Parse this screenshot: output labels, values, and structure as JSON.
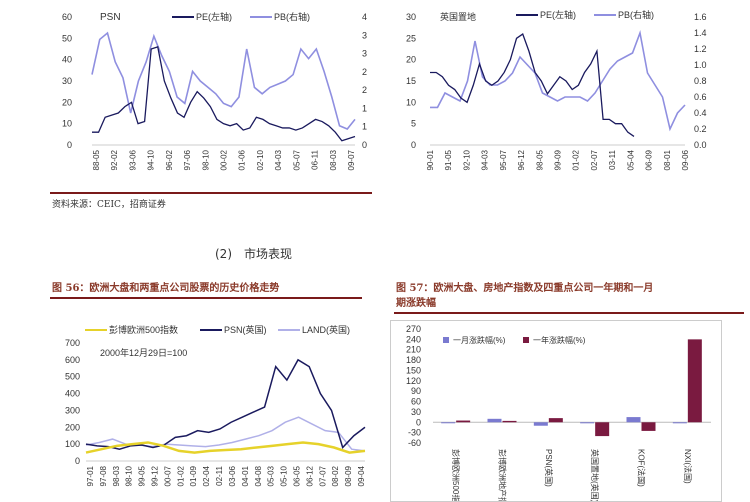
{
  "section_heading": "(2)　市场表现",
  "source_note": "资料来源：CEIC，招商证券",
  "fig56_caption": "图 56：欧洲大盘和两重点公司股票的历史价格走势",
  "fig57_caption_line1": "图 57：欧洲大盘、房地产指数及四重点公司一年期和一月",
  "fig57_caption_line2": "期涨跌幅",
  "colors": {
    "pe": "#1a1a5e",
    "pb": "#8f8fe0",
    "euro500": "#e6d22a",
    "land": "#b0b0e8",
    "month": "#7a7ad0",
    "year": "#7a1a40",
    "rule": "#7a1a1a"
  },
  "chart_data": [
    {
      "type": "line",
      "title": "PSN",
      "legend_placement": "top",
      "ylim_left": [
        0,
        60
      ],
      "ylim_right": [
        0,
        4
      ],
      "left_ticks": [
        "0",
        "10",
        "20",
        "30",
        "40",
        "50",
        "60"
      ],
      "right_ticks": [
        "0",
        "1",
        "1",
        "2",
        "2",
        "3",
        "3",
        "4"
      ],
      "x_ticks": [
        "88-05",
        "92-02",
        "93-06",
        "94-10",
        "96-02",
        "97-06",
        "98-10",
        "00-02",
        "01-06",
        "02-10",
        "04-03",
        "05-07",
        "06-11",
        "08-03",
        "09-07"
      ],
      "series": [
        {
          "name": "PE(左轴)",
          "axis": "left",
          "values": [
            6,
            6,
            13,
            14,
            15,
            18,
            20,
            10,
            11,
            45,
            46,
            30,
            22,
            15,
            13,
            20,
            25,
            22,
            18,
            12,
            10,
            9,
            10,
            7,
            8,
            13,
            12,
            10,
            9,
            8,
            8,
            7,
            8,
            10,
            12,
            11,
            9,
            6,
            2,
            3,
            4
          ]
        },
        {
          "name": "PB(右轴)",
          "axis": "right",
          "values": [
            2.2,
            3.3,
            3.5,
            2.6,
            2.1,
            1.0,
            2.0,
            2.6,
            3.4,
            2.8,
            2.3,
            1.5,
            1.3,
            2.3,
            2.0,
            1.8,
            1.6,
            1.3,
            1.2,
            1.5,
            3.0,
            1.8,
            1.6,
            1.8,
            1.9,
            2.0,
            2.2,
            3.0,
            2.7,
            3.0,
            2.3,
            1.5,
            0.6,
            0.5,
            0.8
          ]
        }
      ]
    },
    {
      "type": "line",
      "title": "英国置地",
      "legend_placement": "top",
      "ylim_left": [
        0,
        30
      ],
      "ylim_right": [
        0,
        1.6
      ],
      "left_ticks": [
        "0",
        "5",
        "10",
        "15",
        "20",
        "25",
        "30"
      ],
      "right_ticks": [
        "0.0",
        "0.2",
        "0.4",
        "0.6",
        "0.8",
        "1.0",
        "1.2",
        "1.4",
        "1.6"
      ],
      "x_ticks": [
        "90-01",
        "91-05",
        "92-10",
        "94-03",
        "95-07",
        "96-12",
        "98-05",
        "99-09",
        "01-02",
        "02-07",
        "03-11",
        "05-04",
        "06-09",
        "08-01",
        "09-06"
      ],
      "series": [
        {
          "name": "PE(左轴)",
          "axis": "left",
          "span": 0.8,
          "values": [
            17,
            17,
            16,
            14,
            13,
            11,
            10,
            14,
            19,
            15,
            14,
            15,
            17,
            20,
            25,
            26,
            22,
            17,
            15,
            12,
            14,
            16,
            15,
            13,
            14,
            17,
            19,
            22,
            6,
            6,
            5,
            5,
            3,
            2
          ]
        },
        {
          "name": "PB(右轴)",
          "axis": "right",
          "values": [
            0.47,
            0.47,
            0.65,
            0.6,
            0.55,
            0.8,
            1.3,
            0.85,
            0.75,
            0.75,
            0.8,
            0.9,
            1.1,
            1.0,
            0.9,
            0.65,
            0.6,
            0.55,
            0.6,
            0.6,
            0.6,
            0.55,
            0.65,
            0.8,
            0.95,
            1.05,
            1.1,
            1.15,
            1.4,
            0.9,
            0.75,
            0.6,
            0.2,
            0.4,
            0.5
          ]
        }
      ]
    },
    {
      "type": "line",
      "annotation": "2000年12月29日=100",
      "legend_placement": "top",
      "ylim": [
        0,
        700
      ],
      "y_ticks": [
        "0",
        "100",
        "200",
        "300",
        "400",
        "500",
        "600",
        "700"
      ],
      "x_ticks": [
        "97-01",
        "97-08",
        "98-03",
        "98-10",
        "99-05",
        "99-12",
        "00-07",
        "01-02",
        "01-09",
        "02-04",
        "02-11",
        "03-06",
        "04-01",
        "04-08",
        "05-03",
        "05-10",
        "06-05",
        "06-12",
        "07-07",
        "08-02",
        "08-09",
        "09-04"
      ],
      "series": [
        {
          "name": "彭博欧洲500指数",
          "values": [
            50,
            70,
            90,
            100,
            110,
            90,
            60,
            50,
            60,
            65,
            70,
            80,
            90,
            100,
            110,
            100,
            80,
            50,
            60
          ]
        },
        {
          "name": "PSN(英国)",
          "values": [
            100,
            90,
            85,
            70,
            90,
            95,
            80,
            95,
            140,
            150,
            180,
            170,
            190,
            230,
            260,
            290,
            320,
            560,
            480,
            600,
            560,
            400,
            300,
            80,
            150,
            200
          ]
        },
        {
          "name": "LAND(英国)",
          "values": [
            95,
            110,
            130,
            100,
            95,
            85,
            100,
            95,
            90,
            85,
            95,
            110,
            130,
            150,
            180,
            230,
            260,
            220,
            180,
            170,
            70,
            60
          ]
        }
      ]
    },
    {
      "type": "bar",
      "ylim": [
        -60,
        270
      ],
      "y_ticks": [
        "-60",
        "-30",
        "0",
        "30",
        "60",
        "90",
        "120",
        "150",
        "180",
        "210",
        "240",
        "270"
      ],
      "categories": [
        "彭博欧洲500指数",
        "彭博欧洲地产指数",
        "PSN(英国)",
        "英国置地(英国)",
        "KOF(法国)",
        "NXI(法国)"
      ],
      "series": [
        {
          "name": "一月涨跌幅(%)",
          "values": [
            0,
            10,
            -10,
            -3,
            15,
            -3
          ]
        },
        {
          "name": "一年涨跌幅(%)",
          "values": [
            5,
            4,
            12,
            -40,
            -25,
            240
          ]
        }
      ]
    }
  ]
}
